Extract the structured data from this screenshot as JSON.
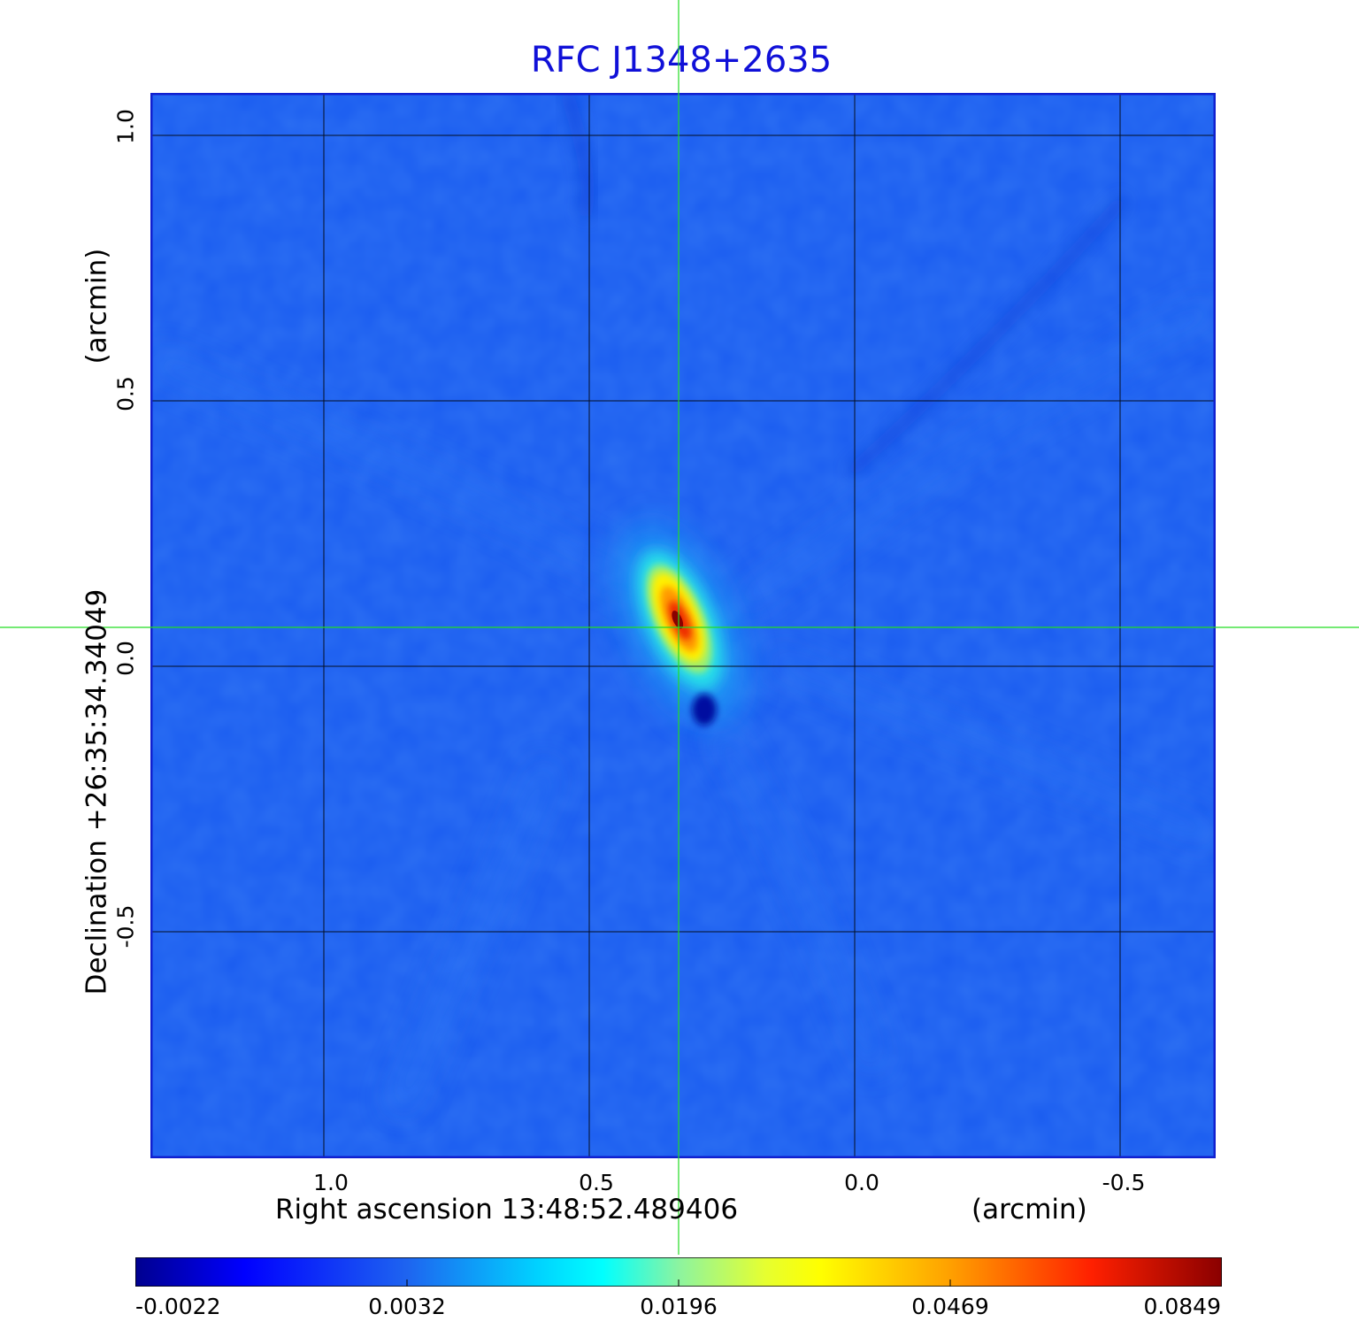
{
  "title": "RFC J1348+2635",
  "x_axis": {
    "label": "Right ascension  13:48:52.489406",
    "unit": "(arcmin)",
    "ticks": [
      "1.0",
      "0.5",
      "0.0",
      "-0.5"
    ]
  },
  "y_axis": {
    "label": "Declination  +26:35:34.34049",
    "unit": "(arcmin)",
    "ticks": [
      "1.0",
      "0.5",
      "0.0",
      "-0.5"
    ]
  },
  "colorbar": {
    "ticks": [
      "-0.0022",
      "0.0032",
      "0.0196",
      "0.0469",
      "0.0849"
    ],
    "colormap": "jet"
  },
  "colors": {
    "title": "#1010d8",
    "crosshair": "#22dd22",
    "grid": "#000000",
    "frame": "#1020d0",
    "background_field": "#1a5cf0"
  }
}
